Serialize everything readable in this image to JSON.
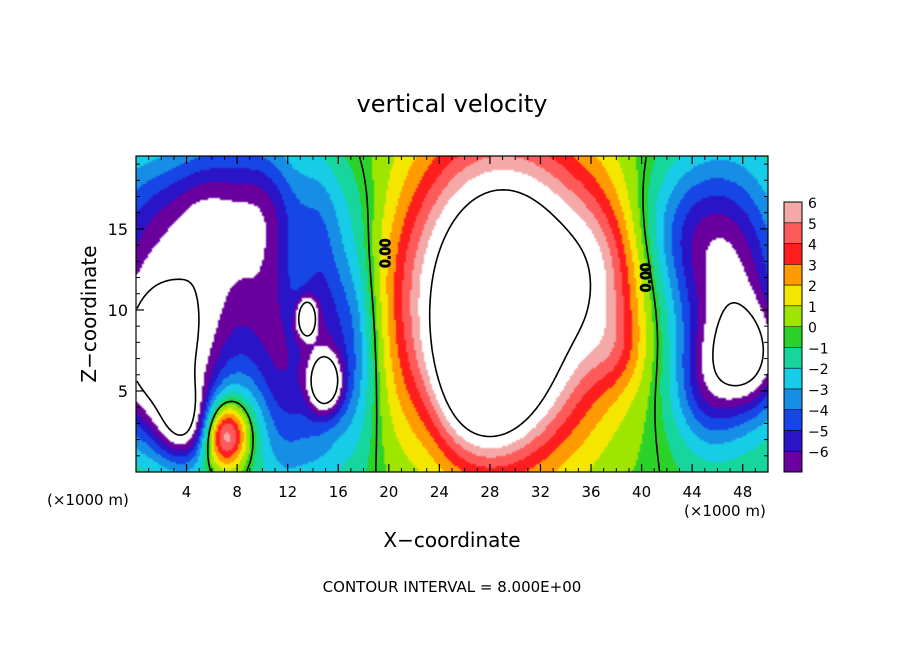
{
  "chart_data": {
    "type": "heatmap",
    "title": "vertical velocity",
    "xlabel": "X−coordinate",
    "ylabel": "Z−coordinate",
    "x_unit_left": "(×1000 m)",
    "x_unit_right": "(×1000 m)",
    "footer": "CONTOUR INTERVAL = 8.000E+00",
    "xlim": [
      0,
      50
    ],
    "ylim": [
      0,
      19.5
    ],
    "x_ticks": [
      4,
      8,
      12,
      16,
      20,
      24,
      28,
      32,
      36,
      40,
      44,
      48
    ],
    "x_tick_labels": [
      "4",
      "8",
      "12",
      "16",
      "20",
      "24",
      "28",
      "32",
      "36",
      "40",
      "44",
      "48"
    ],
    "y_ticks": [
      5,
      10,
      15
    ],
    "y_tick_labels": [
      "5",
      "10",
      "15"
    ],
    "colorbar": {
      "levels": [
        6,
        5,
        4,
        3,
        2,
        1,
        0,
        -1,
        -2,
        -3,
        -4,
        -5,
        -6
      ],
      "labels": [
        "6",
        "5",
        "4",
        "3",
        "2",
        "1",
        "0",
        "−1",
        "−2",
        "−3",
        "−4",
        "−5",
        "−6"
      ],
      "colors": [
        "#f5a8a8",
        "#ff5a5a",
        "#ff1e1e",
        "#ff9a00",
        "#f5e600",
        "#9ee600",
        "#2ad22a",
        "#16d69e",
        "#16cce6",
        "#168ee6",
        "#1646e6",
        "#2a14c8",
        "#6a009e"
      ]
    },
    "contour_labels": [
      "0.00",
      "0.00"
    ],
    "background_value": 0,
    "features": [
      {
        "x": 29,
        "z": 11,
        "sx": 5.5,
        "sz": 6.5,
        "value": 13
      },
      {
        "x": 27.5,
        "z": 6,
        "sx": 2.8,
        "sz": 3.2,
        "value": 6
      },
      {
        "x": 37,
        "z": 12.5,
        "sx": 2.5,
        "sz": 3.5,
        "value": 2.5
      },
      {
        "x": 38,
        "z": 7.5,
        "sx": 1.6,
        "sz": 1.8,
        "value": 1.5
      },
      {
        "x": 7,
        "z": 2.2,
        "sx": 1.2,
        "sz": 1.4,
        "value": 6.5
      },
      {
        "x": 7,
        "z": 3.2,
        "sx": 2.2,
        "sz": 1.8,
        "value": 2
      },
      {
        "x": 1.5,
        "z": 7,
        "sx": 3,
        "sz": 3.5,
        "value": -9
      },
      {
        "x": 4,
        "z": 3,
        "sx": 1.6,
        "sz": 1.8,
        "value": -6
      },
      {
        "x": 2,
        "z": 14,
        "sx": 4,
        "sz": 4,
        "value": -4.5
      },
      {
        "x": 6,
        "z": 12,
        "sx": 2,
        "sz": 6,
        "value": -3
      },
      {
        "x": 10,
        "z": 12,
        "sx": 2,
        "sz": 6,
        "value": -4.5
      },
      {
        "x": 12,
        "z": 5,
        "sx": 1.6,
        "sz": 4.5,
        "value": -3.5
      },
      {
        "x": 14.5,
        "z": 9,
        "sx": 1.2,
        "sz": 6,
        "value": -3.5
      },
      {
        "x": 15,
        "z": 5.5,
        "sx": 0.9,
        "sz": 1.2,
        "value": -6.5
      },
      {
        "x": 17,
        "z": 8,
        "sx": 1.6,
        "sz": 5,
        "value": -4.5
      },
      {
        "x": 13.5,
        "z": 9.5,
        "sx": 0.5,
        "sz": 0.8,
        "value": -7
      },
      {
        "x": 9,
        "z": 16.5,
        "sx": 6,
        "sz": 2.5,
        "value": -2
      },
      {
        "x": 47,
        "z": 11,
        "sx": 3.2,
        "sz": 5.5,
        "value": -6.5
      },
      {
        "x": 48.5,
        "z": 7,
        "sx": 2,
        "sz": 2.2,
        "value": -5
      },
      {
        "x": 45,
        "z": 5,
        "sx": 1.8,
        "sz": 2.5,
        "value": -2.5
      },
      {
        "x": 43,
        "z": 15,
        "sx": 3,
        "sz": 3,
        "value": -2.5
      },
      {
        "x": 23.5,
        "z": 5,
        "sx": 1.5,
        "sz": 3.5,
        "value": -0.8
      }
    ]
  }
}
